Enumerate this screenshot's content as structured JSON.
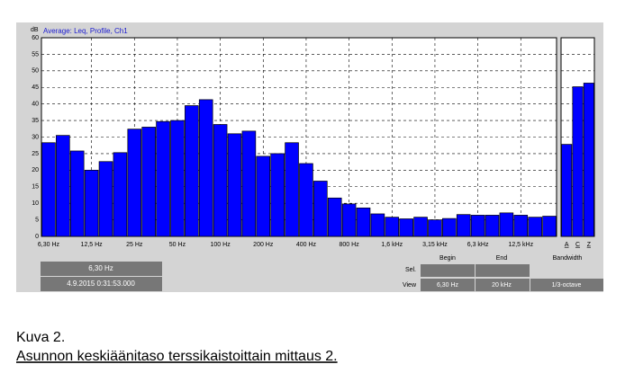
{
  "chart_data": [
    {
      "type": "bar",
      "title": "Average: Leq, Profile, Ch1",
      "y_label": "dB",
      "categories": [
        "6,30 Hz",
        null,
        null,
        "12,5 Hz",
        null,
        null,
        "25 Hz",
        null,
        null,
        "50 Hz",
        null,
        null,
        "100 Hz",
        null,
        null,
        "200 Hz",
        null,
        null,
        "400 Hz",
        null,
        null,
        "800 Hz",
        null,
        null,
        "1,6 kHz",
        null,
        null,
        "3,15 kHz",
        null,
        null,
        "6,3 kHz",
        null,
        null,
        "12,5 kHz",
        null,
        null
      ],
      "values": [
        28.3,
        30.5,
        25.8,
        20,
        22.6,
        25.3,
        32.4,
        33,
        34.7,
        35,
        39.5,
        41.3,
        33.8,
        31,
        31.8,
        24.2,
        25,
        28.3,
        22,
        16.7,
        11.6,
        9.8,
        8.6,
        6.8,
        5.8,
        5.3,
        5.8,
        5,
        5.4,
        6.6,
        6.4,
        6.4,
        7.1,
        6.4,
        5.8,
        6.1
      ],
      "color": "#0000ff",
      "ylim": [
        0,
        60
      ],
      "yticks": [
        0,
        5,
        10,
        15,
        20,
        25,
        30,
        35,
        40,
        45,
        50,
        55,
        60
      ],
      "grid": true
    },
    {
      "type": "bar",
      "categories": [
        "A",
        "C",
        "Z"
      ],
      "values": [
        27.8,
        45.2,
        46.3
      ],
      "color": "#0000ff",
      "ylim": [
        0,
        60
      ],
      "grid": true
    }
  ],
  "cursor": {
    "frequency": "6,30 Hz",
    "timestamp": "4.9.2015 0:31:53.000"
  },
  "range_table": {
    "columns": [
      "Begin",
      "End",
      "Bandwidth"
    ],
    "rows": [
      {
        "label": "Sel."
      },
      {
        "label": "View",
        "cells": [
          "6,30 Hz",
          "20 kHz",
          "1/3-octave"
        ]
      }
    ]
  },
  "caption": {
    "number": "Kuva 2.",
    "text": "Asunnon keskiäänitaso terssikaistoittain mittaus 2."
  }
}
